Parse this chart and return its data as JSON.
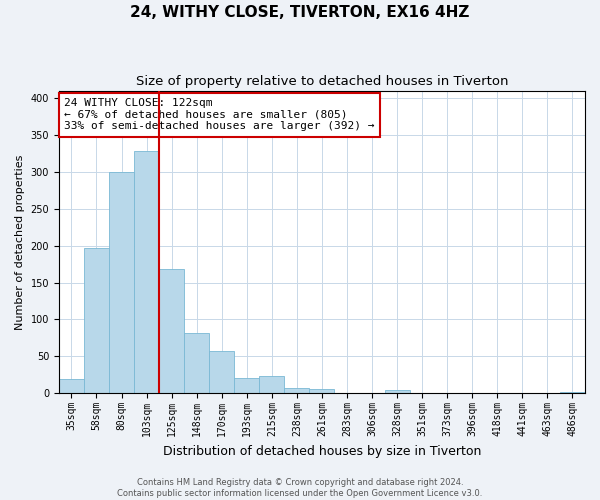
{
  "title": "24, WITHY CLOSE, TIVERTON, EX16 4HZ",
  "subtitle": "Size of property relative to detached houses in Tiverton",
  "xlabel": "Distribution of detached houses by size in Tiverton",
  "ylabel": "Number of detached properties",
  "categories": [
    "35sqm",
    "58sqm",
    "80sqm",
    "103sqm",
    "125sqm",
    "148sqm",
    "170sqm",
    "193sqm",
    "215sqm",
    "238sqm",
    "261sqm",
    "283sqm",
    "306sqm",
    "328sqm",
    "351sqm",
    "373sqm",
    "396sqm",
    "418sqm",
    "441sqm",
    "463sqm",
    "486sqm"
  ],
  "values": [
    20,
    197,
    300,
    328,
    168,
    82,
    57,
    21,
    23,
    7,
    6,
    0,
    0,
    5,
    0,
    0,
    0,
    0,
    0,
    0,
    2
  ],
  "bar_color": "#b8d8ea",
  "bar_edge_color": "#7ab8d4",
  "highlight_line_index": 3,
  "highlight_line_color": "#cc0000",
  "annotation_line1": "24 WITHY CLOSE: 122sqm",
  "annotation_line2": "← 67% of detached houses are smaller (805)",
  "annotation_line3": "33% of semi-detached houses are larger (392) →",
  "annotation_box_color": "#ffffff",
  "annotation_box_edge_color": "#cc0000",
  "ylim": [
    0,
    410
  ],
  "yticks": [
    0,
    50,
    100,
    150,
    200,
    250,
    300,
    350,
    400
  ],
  "footnote_line1": "Contains HM Land Registry data © Crown copyright and database right 2024.",
  "footnote_line2": "Contains public sector information licensed under the Open Government Licence v3.0.",
  "background_color": "#eef2f7",
  "plot_background_color": "#ffffff",
  "grid_color": "#c8d8e8",
  "title_fontsize": 11,
  "subtitle_fontsize": 9.5,
  "tick_fontsize": 7,
  "ylabel_fontsize": 8,
  "xlabel_fontsize": 9,
  "annotation_fontsize": 8,
  "footnote_fontsize": 6
}
